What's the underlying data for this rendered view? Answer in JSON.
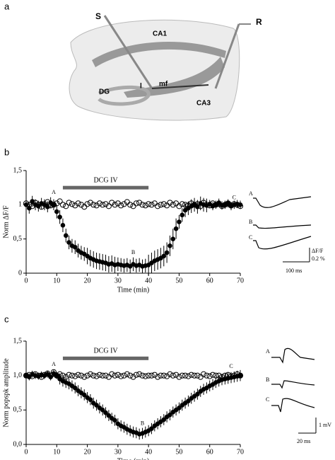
{
  "diagram": {
    "panel_label": "a",
    "labels": [
      "S",
      "R",
      "CA1",
      "DG",
      "l",
      "mf",
      "CA3"
    ]
  },
  "chart_data": [
    {
      "type": "scatter",
      "panel_label": "b",
      "xlabel": "Time (min)",
      "ylabel": "Norm ΔF/F",
      "xlim": [
        0,
        70
      ],
      "xticks": [
        0,
        10,
        20,
        30,
        40,
        50,
        60,
        70
      ],
      "ylim": [
        0,
        1.5
      ],
      "yticks": [
        {
          "value": 0,
          "label": "0"
        },
        {
          "value": 0.5,
          "label": "0,5"
        },
        {
          "value": 1,
          "label": "1"
        },
        {
          "value": 1.5,
          "label": "1,5"
        }
      ],
      "drug_bar": {
        "label": "DCG IV",
        "x": [
          12,
          40
        ]
      },
      "annotations": [
        {
          "text": "A",
          "x": 9,
          "y": 1.18
        },
        {
          "text": "B",
          "x": 35,
          "y": 0.3
        },
        {
          "text": "C",
          "x": 68,
          "y": 1.1
        }
      ],
      "x": [
        0,
        1,
        2,
        3,
        4,
        5,
        6,
        7,
        8,
        9,
        10,
        11,
        12,
        13,
        14,
        15,
        16,
        17,
        18,
        19,
        20,
        21,
        22,
        23,
        24,
        25,
        26,
        27,
        28,
        29,
        30,
        31,
        32,
        33,
        34,
        35,
        36,
        37,
        38,
        39,
        40,
        41,
        42,
        43,
        44,
        45,
        46,
        47,
        48,
        49,
        50,
        51,
        52,
        53,
        54,
        55,
        56,
        57,
        58,
        59,
        60,
        61,
        62,
        63,
        64,
        65,
        66,
        67,
        68,
        69,
        70
      ],
      "series": [
        {
          "marker": "open",
          "color": "#000000",
          "values": [
            1.02,
            1.0,
            0.98,
            1.03,
            1.0,
            0.97,
            1.01,
            1.04,
            0.99,
            1.0,
            1.02,
            1.05,
            1.0,
            0.98,
            1.03,
            1.01,
            0.99,
            1.02,
            1.0,
            0.97,
            1.01,
            1.03,
            1.0,
            0.99,
            1.02,
            1.0,
            1.01,
            0.98,
            1.03,
            1.0,
            1.02,
            0.99,
            1.01,
            1.04,
            1.0,
            0.98,
            1.02,
            1.03,
            1.0,
            0.99,
            1.01,
            1.0,
            1.02,
            0.98,
            1.0,
            1.01,
            0.99,
            1.03,
            1.0,
            1.02,
            0.98,
            1.01,
            1.0,
            0.99,
            1.02,
            1.0,
            1.01,
            0.98,
            1.03,
            1.0,
            0.99,
            1.02,
            1.0,
            1.01,
            0.98,
            1.0,
            1.02,
            0.99,
            1.01,
            1.0,
            0.98
          ]
        },
        {
          "marker": "filled",
          "color": "#000000",
          "values": [
            1.0,
            0.95,
            1.05,
            1.0,
            0.98,
            1.02,
            1.0,
            0.97,
            1.03,
            1.0,
            0.9,
            0.82,
            0.7,
            0.55,
            0.45,
            0.4,
            0.38,
            0.33,
            0.3,
            0.28,
            0.25,
            0.22,
            0.2,
            0.18,
            0.17,
            0.16,
            0.15,
            0.13,
            0.14,
            0.12,
            0.13,
            0.12,
            0.11,
            0.12,
            0.1,
            0.13,
            0.11,
            0.12,
            0.1,
            0.11,
            0.12,
            0.15,
            0.18,
            0.2,
            0.22,
            0.25,
            0.3,
            0.4,
            0.5,
            0.65,
            0.75,
            0.85,
            0.92,
            0.95,
            0.98,
            1.0,
            0.97,
            1.02,
            1.0,
            0.99,
            1.01,
            0.98,
            1.0,
            1.03,
            0.99,
            1.0,
            1.02,
            0.98,
            1.0,
            1.01,
            1.0
          ],
          "errors": [
            0.08,
            0.08,
            0.08,
            0.08,
            0.08,
            0.08,
            0.08,
            0.08,
            0.08,
            0.08,
            0.1,
            0.1,
            0.1,
            0.1,
            0.1,
            0.1,
            0.1,
            0.1,
            0.1,
            0.1,
            0.12,
            0.12,
            0.12,
            0.12,
            0.12,
            0.12,
            0.12,
            0.12,
            0.12,
            0.12,
            0.1,
            0.1,
            0.1,
            0.1,
            0.1,
            0.1,
            0.1,
            0.1,
            0.1,
            0.1,
            0.15,
            0.15,
            0.15,
            0.15,
            0.15,
            0.15,
            0.15,
            0.15,
            0.15,
            0.15,
            0.1,
            0.1,
            0.1,
            0.1,
            0.1,
            0.1,
            0.1,
            0.1,
            0.1,
            0.1,
            0.06,
            0.06,
            0.06,
            0.06,
            0.06,
            0.06,
            0.06,
            0.06,
            0.06,
            0.06,
            0.06
          ]
        }
      ],
      "inset": {
        "trace_labels": [
          "A",
          "B",
          "C"
        ],
        "scale_labels": [
          "ΔF/F",
          "0.2 %",
          "100 ms"
        ]
      }
    },
    {
      "type": "scatter",
      "panel_label": "c",
      "xlabel": "Time (min)",
      "ylabel": "Norm popspk amplitude",
      "xlim": [
        0,
        70
      ],
      "xticks": [
        0,
        10,
        20,
        30,
        40,
        50,
        60,
        70
      ],
      "ylim": [
        0,
        1.5
      ],
      "yticks": [
        {
          "value": 0,
          "label": "0,0"
        },
        {
          "value": 0.5,
          "label": "0,5"
        },
        {
          "value": 1,
          "label": "1,0"
        },
        {
          "value": 1.5,
          "label": "1,5"
        }
      ],
      "drug_bar": {
        "label": "DCG IV",
        "x": [
          12,
          40
        ]
      },
      "annotations": [
        {
          "text": "A",
          "x": 9,
          "y": 1.16
        },
        {
          "text": "B",
          "x": 38,
          "y": 0.3
        },
        {
          "text": "C",
          "x": 67,
          "y": 1.13
        }
      ],
      "x": [
        0,
        1,
        2,
        3,
        4,
        5,
        6,
        7,
        8,
        9,
        10,
        11,
        12,
        13,
        14,
        15,
        16,
        17,
        18,
        19,
        20,
        21,
        22,
        23,
        24,
        25,
        26,
        27,
        28,
        29,
        30,
        31,
        32,
        33,
        34,
        35,
        36,
        37,
        38,
        39,
        40,
        41,
        42,
        43,
        44,
        45,
        46,
        47,
        48,
        49,
        50,
        51,
        52,
        53,
        54,
        55,
        56,
        57,
        58,
        59,
        60,
        61,
        62,
        63,
        64,
        65,
        66,
        67,
        68,
        69,
        70
      ],
      "series": [
        {
          "marker": "open",
          "color": "#000000",
          "values": [
            1.0,
            1.01,
            0.99,
            1.02,
            1.0,
            0.98,
            1.01,
            1.03,
            1.0,
            1.05,
            1.0,
            1.02,
            1.0,
            0.98,
            1.01,
            1.0,
            0.99,
            1.01,
            1.0,
            0.98,
            1.0,
            1.02,
            1.0,
            0.99,
            1.01,
            1.0,
            1.0,
            0.98,
            1.02,
            1.0,
            1.01,
            0.99,
            1.0,
            1.02,
            1.0,
            0.98,
            1.01,
            1.02,
            1.0,
            0.99,
            1.0,
            1.0,
            1.01,
            0.98,
            1.0,
            1.0,
            0.99,
            1.02,
            1.0,
            1.01,
            0.98,
            1.0,
            1.0,
            0.99,
            1.01,
            1.0,
            1.0,
            0.98,
            1.02,
            1.0,
            0.99,
            1.01,
            1.0,
            1.0,
            0.98,
            1.0,
            1.01,
            0.99,
            1.0,
            1.02,
            1.0
          ]
        },
        {
          "marker": "filled",
          "color": "#000000",
          "values": [
            1.0,
            0.98,
            1.02,
            1.0,
            0.99,
            1.01,
            1.0,
            1.02,
            0.98,
            1.03,
            1.0,
            0.95,
            0.92,
            0.9,
            0.88,
            0.85,
            0.82,
            0.78,
            0.75,
            0.72,
            0.68,
            0.65,
            0.6,
            0.57,
            0.53,
            0.5,
            0.46,
            0.42,
            0.38,
            0.35,
            0.3,
            0.27,
            0.25,
            0.22,
            0.2,
            0.18,
            0.17,
            0.15,
            0.16,
            0.18,
            0.2,
            0.23,
            0.27,
            0.3,
            0.33,
            0.36,
            0.4,
            0.43,
            0.47,
            0.5,
            0.53,
            0.57,
            0.6,
            0.63,
            0.67,
            0.7,
            0.73,
            0.77,
            0.8,
            0.82,
            0.85,
            0.87,
            0.9,
            0.92,
            0.94,
            0.95,
            0.96,
            0.97,
            0.98,
            0.99,
            1.0
          ],
          "errors": [
            0.05,
            0.05,
            0.05,
            0.05,
            0.05,
            0.05,
            0.05,
            0.05,
            0.05,
            0.05,
            0.05,
            0.08,
            0.08,
            0.08,
            0.08,
            0.08,
            0.08,
            0.08,
            0.08,
            0.08,
            0.08,
            0.08,
            0.08,
            0.08,
            0.08,
            0.08,
            0.08,
            0.08,
            0.08,
            0.08,
            0.08,
            0.08,
            0.08,
            0.08,
            0.08,
            0.08,
            0.08,
            0.08,
            0.08,
            0.08,
            0.08,
            0.08,
            0.08,
            0.08,
            0.08,
            0.08,
            0.08,
            0.08,
            0.08,
            0.08,
            0.08,
            0.08,
            0.08,
            0.08,
            0.08,
            0.08,
            0.08,
            0.08,
            0.08,
            0.08,
            0.08,
            0.08,
            0.08,
            0.08,
            0.08,
            0.08,
            0.08,
            0.08,
            0.08,
            0.08,
            0.08
          ]
        }
      ],
      "inset": {
        "trace_labels": [
          "A",
          "B",
          "C"
        ],
        "scale_labels": [
          "1 mV",
          "20 ms"
        ]
      }
    }
  ]
}
